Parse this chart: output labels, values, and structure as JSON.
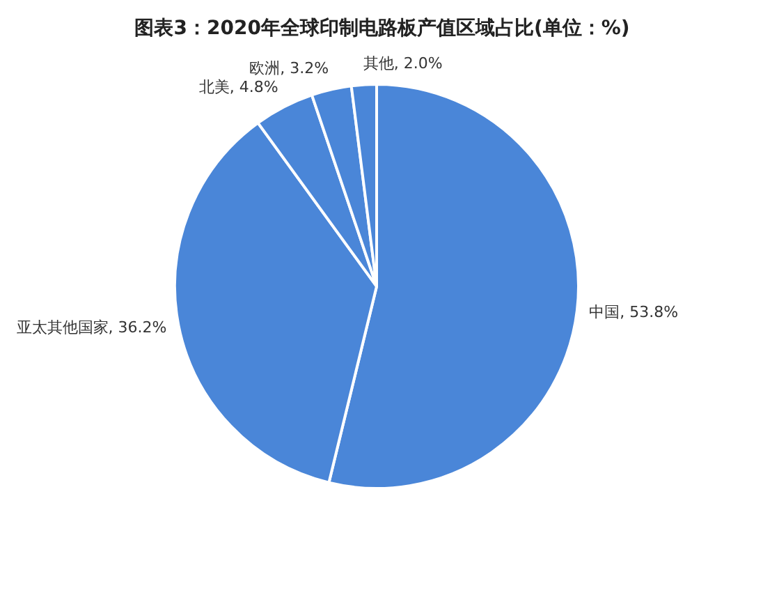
{
  "chart_data": {
    "type": "pie",
    "title": "图表3：2020年全球印制电路板产值区域占比(单位：%)",
    "categories": [
      "中国",
      "亚太其他国家",
      "北美",
      "欧洲",
      "其他"
    ],
    "values": [
      53.8,
      36.2,
      4.8,
      3.2,
      2.0
    ],
    "colors": [
      "#4a86d8",
      "#4a86d8",
      "#4a86d8",
      "#4a86d8",
      "#4a86d8"
    ],
    "value_labels": [
      "53.8%",
      "36.2%",
      "4.8%",
      "3.2%",
      "2.0%"
    ]
  }
}
